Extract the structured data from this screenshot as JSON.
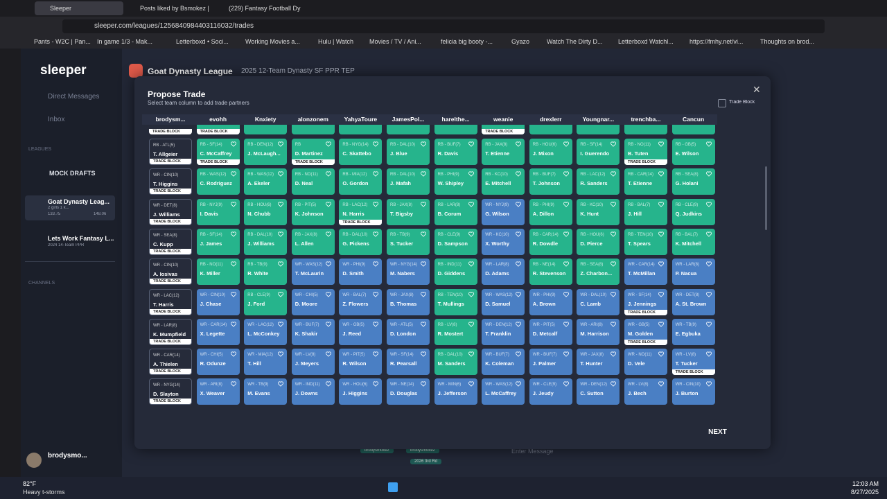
{
  "browser": {
    "tabs": [
      "Sleeper",
      "Posts liked by Bsmokez |",
      "(229) Fantasy Football Dy"
    ],
    "url": "sleeper.com/leagues/1256840984403116032/trades",
    "bookmarks": [
      "Pants - W2C | Pan...",
      "In game 1/3 - Mak...",
      "Letterboxd • Soci...",
      "Working Movies a...",
      "Hulu | Watch",
      "Movies / TV / Ani...",
      "felicia big booty -...",
      "Gyazo",
      "Watch The Dirty D...",
      "Letterboxd Watchl...",
      "https://fmhy.net/vi...",
      "Thoughts on brod..."
    ]
  },
  "sidebar": {
    "logo": "sleeper",
    "direct_messages": "Direct Messages",
    "inbox": "Inbox",
    "leagues_heading": "LEAGUES",
    "mock_drafts": "MOCK DRAFTS",
    "leagues": [
      {
        "name": "Goat Dynasty Leag...",
        "sub": "2 girls 1 k...",
        "left_score": "133.75",
        "right_score": "148.06"
      },
      {
        "name": "Lets Work Fantasy L...",
        "sub": "2024 14-Team PPR"
      }
    ],
    "channels_heading": "CHANNELS",
    "user": "brodysmo..."
  },
  "header": {
    "league": "Goat Dynasty League",
    "subtitle": "2025 12-Team Dynasty SF PPR TEP"
  },
  "modal": {
    "title": "Propose Trade",
    "subtitle": "Select team column to add trade partners",
    "trade_block_toggle": "Trade Block",
    "columns": [
      "brodysm...",
      "evohh",
      "Knxiety",
      "alonzonem",
      "YahyaToure",
      "JamesPol...",
      "harelthe...",
      "weanie",
      "drexlerr",
      "Youngnar...",
      "trenchba...",
      "Cancun"
    ],
    "top_flags": [
      "TRADE BLOCK",
      "TRADE BLOCK",
      null,
      null,
      null,
      null,
      null,
      "TRADE BLOCK",
      null,
      null,
      null,
      null
    ],
    "rows": [
      [
        [
          "RB - ATL(5)",
          "T. Allgeier",
          "TRADE BLOCK"
        ],
        [
          "RB - SF(14)",
          "C. McCaffrey",
          "TRADE BLOCK"
        ],
        [
          "RB - DEN(12)",
          "J. McLaugh..."
        ],
        [
          "RB",
          "D. Martinez",
          "TRADE BLOCK"
        ],
        [
          "RB - NYG(14)",
          "C. Skattebo"
        ],
        [
          "RB - DAL(10)",
          "J. Blue"
        ],
        [
          "RB - BUF(7)",
          "R. Davis"
        ],
        [
          "RB - JAX(8)",
          "T. Etienne"
        ],
        [
          "RB - HOU(6)",
          "J. Mixon"
        ],
        [
          "RB - SF(14)",
          "I. Guerendo"
        ],
        [
          "RB - NO(11)",
          "B. Tuten",
          "TRADE BLOCK"
        ],
        [
          "RB - GB(5)",
          "E. Wilson"
        ]
      ],
      [
        [
          "WR - CIN(10)",
          "T. Higgins",
          "TRADE BLOCK"
        ],
        [
          "RB - WAS(12)",
          "C. Rodriguez"
        ],
        [
          "RB - WAS(12)",
          "A. Ekeler"
        ],
        [
          "RB - NO(11)",
          "D. Neal"
        ],
        [
          "RB - MIA(12)",
          "O. Gordon"
        ],
        [
          "RB - DAL(10)",
          "J. Mafah"
        ],
        [
          "RB - PHI(9)",
          "W. Shipley"
        ],
        [
          "RB - KC(10)",
          "E. Mitchell"
        ],
        [
          "RB - BUF(7)",
          "T. Johnson"
        ],
        [
          "RB - LAC(12)",
          "R. Sanders"
        ],
        [
          "RB - CAR(14)",
          "T. Etienne"
        ],
        [
          "RB - SEA(8)",
          "G. Holani"
        ]
      ],
      [
        [
          "WR - DET(8)",
          "J. Williams",
          "TRADE BLOCK"
        ],
        [
          "RB - NYJ(9)",
          "I. Davis"
        ],
        [
          "RB - HOU(6)",
          "N. Chubb"
        ],
        [
          "RB - PIT(5)",
          "K. Johnson"
        ],
        [
          "RB - LAC(12)",
          "N. Harris",
          "TRADE BLOCK"
        ],
        [
          "RB - JAX(8)",
          "T. Bigsby"
        ],
        [
          "RB - LAR(8)",
          "B. Corum"
        ],
        [
          "WR - NYJ(9)",
          "G. Wilson"
        ],
        [
          "RB - PHI(9)",
          "A. Dillon"
        ],
        [
          "RB - KC(10)",
          "K. Hunt"
        ],
        [
          "RB - BAL(7)",
          "J. Hill"
        ],
        [
          "RB - CLE(9)",
          "Q. Judkins"
        ]
      ],
      [
        [
          "WR - SEA(8)",
          "C. Kupp",
          "TRADE BLOCK"
        ],
        [
          "RB - SF(14)",
          "J. James"
        ],
        [
          "RB - DAL(10)",
          "J. Williams"
        ],
        [
          "RB - JAX(8)",
          "L. Allen"
        ],
        [
          "RB - DAL(10)",
          "G. Pickens"
        ],
        [
          "RB - TB(9)",
          "S. Tucker"
        ],
        [
          "RB - CLE(9)",
          "D. Sampson"
        ],
        [
          "WR - KC(10)",
          "X. Worthy"
        ],
        [
          "RB - CAR(14)",
          "R. Dowdle"
        ],
        [
          "RB - HOU(6)",
          "D. Pierce"
        ],
        [
          "RB - TEN(10)",
          "T. Spears"
        ],
        [
          "RB - BAL(7)",
          "K. Mitchell"
        ]
      ],
      [
        [
          "WR - CIN(10)",
          "A. Iosivas",
          "TRADE BLOCK"
        ],
        [
          "RB - NO(11)",
          "K. Miller"
        ],
        [
          "RB - TB(9)",
          "R. White"
        ],
        [
          "WR - WAS(12)",
          "T. McLaurin"
        ],
        [
          "WR - PHI(9)",
          "D. Smith"
        ],
        [
          "WR - NYG(14)",
          "M. Nabers"
        ],
        [
          "RB - IND(11)",
          "D. Giddens"
        ],
        [
          "WR - LAR(8)",
          "D. Adams"
        ],
        [
          "RB - NE(14)",
          "R. Stevenson"
        ],
        [
          "RB - SEA(8)",
          "Z. Charbon..."
        ],
        [
          "WR - CAR(14)",
          "T. McMillan"
        ],
        [
          "WR - LAR(8)",
          "P. Nacua"
        ]
      ],
      [
        [
          "WR - LAC(12)",
          "T. Harris",
          "TRADE BLOCK"
        ],
        [
          "WR - CIN(10)",
          "J. Chase"
        ],
        [
          "RB - CLE(9)",
          "J. Ford"
        ],
        [
          "WR - CHI(5)",
          "D. Moore"
        ],
        [
          "WR - BAL(7)",
          "Z. Flowers"
        ],
        [
          "WR - JAX(8)",
          "B. Thomas"
        ],
        [
          "RB - TEN(10)",
          "T. Mullings"
        ],
        [
          "WR - WAS(12)",
          "D. Samuel"
        ],
        [
          "WR - PHI(9)",
          "A. Brown"
        ],
        [
          "WR - DAL(10)",
          "C. Lamb"
        ],
        [
          "WR - SF(14)",
          "J. Jennings",
          "TRADE BLOCK"
        ],
        [
          "WR - DET(8)",
          "A. St. Brown"
        ]
      ],
      [
        [
          "WR - LAR(8)",
          "K. Mumpfield",
          "TRADE BLOCK"
        ],
        [
          "WR - CAR(14)",
          "X. Legette"
        ],
        [
          "WR - LAC(12)",
          "L. McConkey"
        ],
        [
          "WR - BUF(7)",
          "K. Shakir"
        ],
        [
          "WR - GB(5)",
          "J. Reed"
        ],
        [
          "WR - ATL(5)",
          "D. London"
        ],
        [
          "RB - LV(8)",
          "R. Mostert"
        ],
        [
          "WR - DEN(12)",
          "T. Franklin"
        ],
        [
          "WR - PIT(5)",
          "D. Metcalf"
        ],
        [
          "WR - ARI(8)",
          "M. Harrison"
        ],
        [
          "WR - GB(5)",
          "M. Golden",
          "TRADE BLOCK"
        ],
        [
          "WR - TB(9)",
          "E. Egbuka"
        ]
      ],
      [
        [
          "WR - CAR(14)",
          "A. Thielen",
          "TRADE BLOCK"
        ],
        [
          "WR - CHI(5)",
          "R. Odunze"
        ],
        [
          "WR - MIA(12)",
          "T. Hill"
        ],
        [
          "WR - LV(8)",
          "J. Meyers"
        ],
        [
          "WR - PIT(5)",
          "R. Wilson"
        ],
        [
          "WR - SF(14)",
          "R. Pearsall"
        ],
        [
          "RB - DAL(10)",
          "M. Sanders"
        ],
        [
          "WR - BUF(7)",
          "K. Coleman"
        ],
        [
          "WR - BUF(7)",
          "J. Palmer"
        ],
        [
          "WR - JAX(8)",
          "T. Hunter"
        ],
        [
          "WR - NO(11)",
          "D. Vele"
        ],
        [
          "WR - LV(8)",
          "T. Tucker",
          "TRADE BLOCK"
        ]
      ],
      [
        [
          "WR - NYG(14)",
          "D. Slayton",
          "TRADE BLOCK"
        ],
        [
          "WR - ARI(8)",
          "X. Weaver"
        ],
        [
          "WR - TB(9)",
          "M. Evans"
        ],
        [
          "WR - IND(11)",
          "J. Downs"
        ],
        [
          "WR - HOU(6)",
          "J. Higgins"
        ],
        [
          "WR - NE(14)",
          "D. Douglas"
        ],
        [
          "WR - MIN(6)",
          "J. Jefferson"
        ],
        [
          "WR - WAS(12)",
          "L. McCaffrey"
        ],
        [
          "WR - CLE(9)",
          "J. Jeudy"
        ],
        [
          "WR - DEN(12)",
          "C. Sutton"
        ],
        [
          "WR - LV(8)",
          "J. Bech"
        ],
        [
          "WR - CIN(10)",
          "J. Burton"
        ]
      ]
    ],
    "next": "NEXT"
  },
  "chat": {
    "placeholder": "Enter Message",
    "tags": [
      "brodysmokez",
      "brodysmokez",
      "2026 3rd Rd"
    ]
  },
  "taskbar": {
    "temp": "82°F",
    "weather": "Heavy t-storms",
    "time": "12:03 AM",
    "date": "8/27/2025"
  }
}
